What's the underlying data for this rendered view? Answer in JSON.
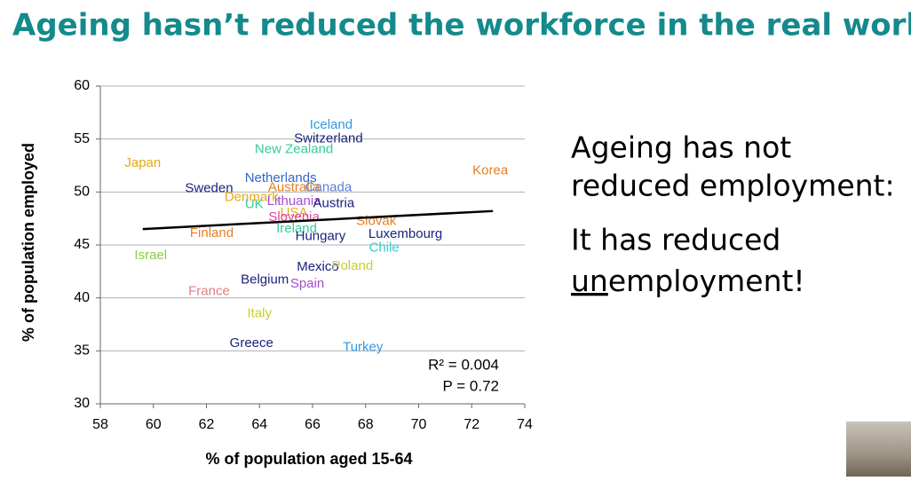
{
  "title": "Ageing hasn’t reduced the workforce in the real world",
  "chart_data": {
    "type": "scatter",
    "xlabel": "% of population aged 15-64",
    "ylabel": "% of population employed",
    "xlim": [
      58,
      74
    ],
    "xticks": [
      58,
      60,
      62,
      64,
      66,
      68,
      70,
      72,
      74
    ],
    "ylim": [
      30,
      60
    ],
    "yticks": [
      30,
      35,
      40,
      45,
      50,
      55,
      60
    ],
    "grid": true,
    "points": [
      {
        "label": "Iceland",
        "x": 66.7,
        "y": 56.3,
        "color": "#3399dd"
      },
      {
        "label": "Switzerland",
        "x": 66.6,
        "y": 55.0,
        "color": "#1a237e"
      },
      {
        "label": "New Zealand",
        "x": 65.3,
        "y": 54.0,
        "color": "#33cc99"
      },
      {
        "label": "Japan",
        "x": 59.6,
        "y": 52.7,
        "color": "#e6a817"
      },
      {
        "label": "Korea",
        "x": 72.7,
        "y": 52.0,
        "color": "#e67e22"
      },
      {
        "label": "Netherlands",
        "x": 64.8,
        "y": 51.3,
        "color": "#3366cc"
      },
      {
        "label": "Sweden",
        "x": 62.1,
        "y": 50.3,
        "color": "#1a237e"
      },
      {
        "label": "Australia",
        "x": 65.3,
        "y": 50.4,
        "color": "#e67e22"
      },
      {
        "label": "Canada",
        "x": 66.6,
        "y": 50.4,
        "color": "#5b7fd6"
      },
      {
        "label": "Denmark",
        "x": 63.7,
        "y": 49.5,
        "color": "#e6a817"
      },
      {
        "label": "Lithuania",
        "x": 65.3,
        "y": 49.1,
        "color": "#a64dcc"
      },
      {
        "label": "Austria",
        "x": 66.8,
        "y": 48.9,
        "color": "#1a237e"
      },
      {
        "label": "UK",
        "x": 63.8,
        "y": 48.8,
        "color": "#33cc99"
      },
      {
        "label": "USA",
        "x": 65.3,
        "y": 48.0,
        "color": "#e6a817"
      },
      {
        "label": "Slovenia",
        "x": 65.3,
        "y": 47.6,
        "color": "#d946a0"
      },
      {
        "label": "Slovak",
        "x": 68.4,
        "y": 47.2,
        "color": "#e67e22"
      },
      {
        "label": "Ireland",
        "x": 65.4,
        "y": 46.5,
        "color": "#33cc99"
      },
      {
        "label": "Hungary",
        "x": 66.3,
        "y": 45.8,
        "color": "#1a237e"
      },
      {
        "label": "Luxembourg",
        "x": 69.5,
        "y": 46.0,
        "color": "#1a237e"
      },
      {
        "label": "Chile",
        "x": 68.7,
        "y": 44.7,
        "color": "#33cccc"
      },
      {
        "label": "Finland",
        "x": 62.2,
        "y": 46.1,
        "color": "#e67e22"
      },
      {
        "label": "Israel",
        "x": 59.9,
        "y": 44.0,
        "color": "#88cc44"
      },
      {
        "label": "Mexico",
        "x": 66.2,
        "y": 42.9,
        "color": "#1a237e"
      },
      {
        "label": "Poland",
        "x": 67.5,
        "y": 43.0,
        "color": "#cccc33"
      },
      {
        "label": "Belgium",
        "x": 64.2,
        "y": 41.7,
        "color": "#1a237e"
      },
      {
        "label": "Spain",
        "x": 65.8,
        "y": 41.3,
        "color": "#a64dcc"
      },
      {
        "label": "France",
        "x": 62.1,
        "y": 40.6,
        "color": "#e08080"
      },
      {
        "label": "Italy",
        "x": 64.0,
        "y": 38.5,
        "color": "#cccc33"
      },
      {
        "label": "Greece",
        "x": 63.7,
        "y": 35.7,
        "color": "#1a237e"
      },
      {
        "label": "Turkey",
        "x": 67.9,
        "y": 35.3,
        "color": "#3399dd"
      }
    ],
    "trendline": {
      "x": [
        59.6,
        72.8
      ],
      "y": [
        46.5,
        48.2
      ],
      "color": "#000000"
    },
    "annotations": [
      "R² = 0.004",
      "P = 0.72"
    ]
  },
  "side_text": {
    "lines": [
      "Ageing has not",
      "reduced employment:"
    ],
    "second_lines": [
      "It has reduced"
    ],
    "underlined": "un",
    "rest": "employment!"
  }
}
